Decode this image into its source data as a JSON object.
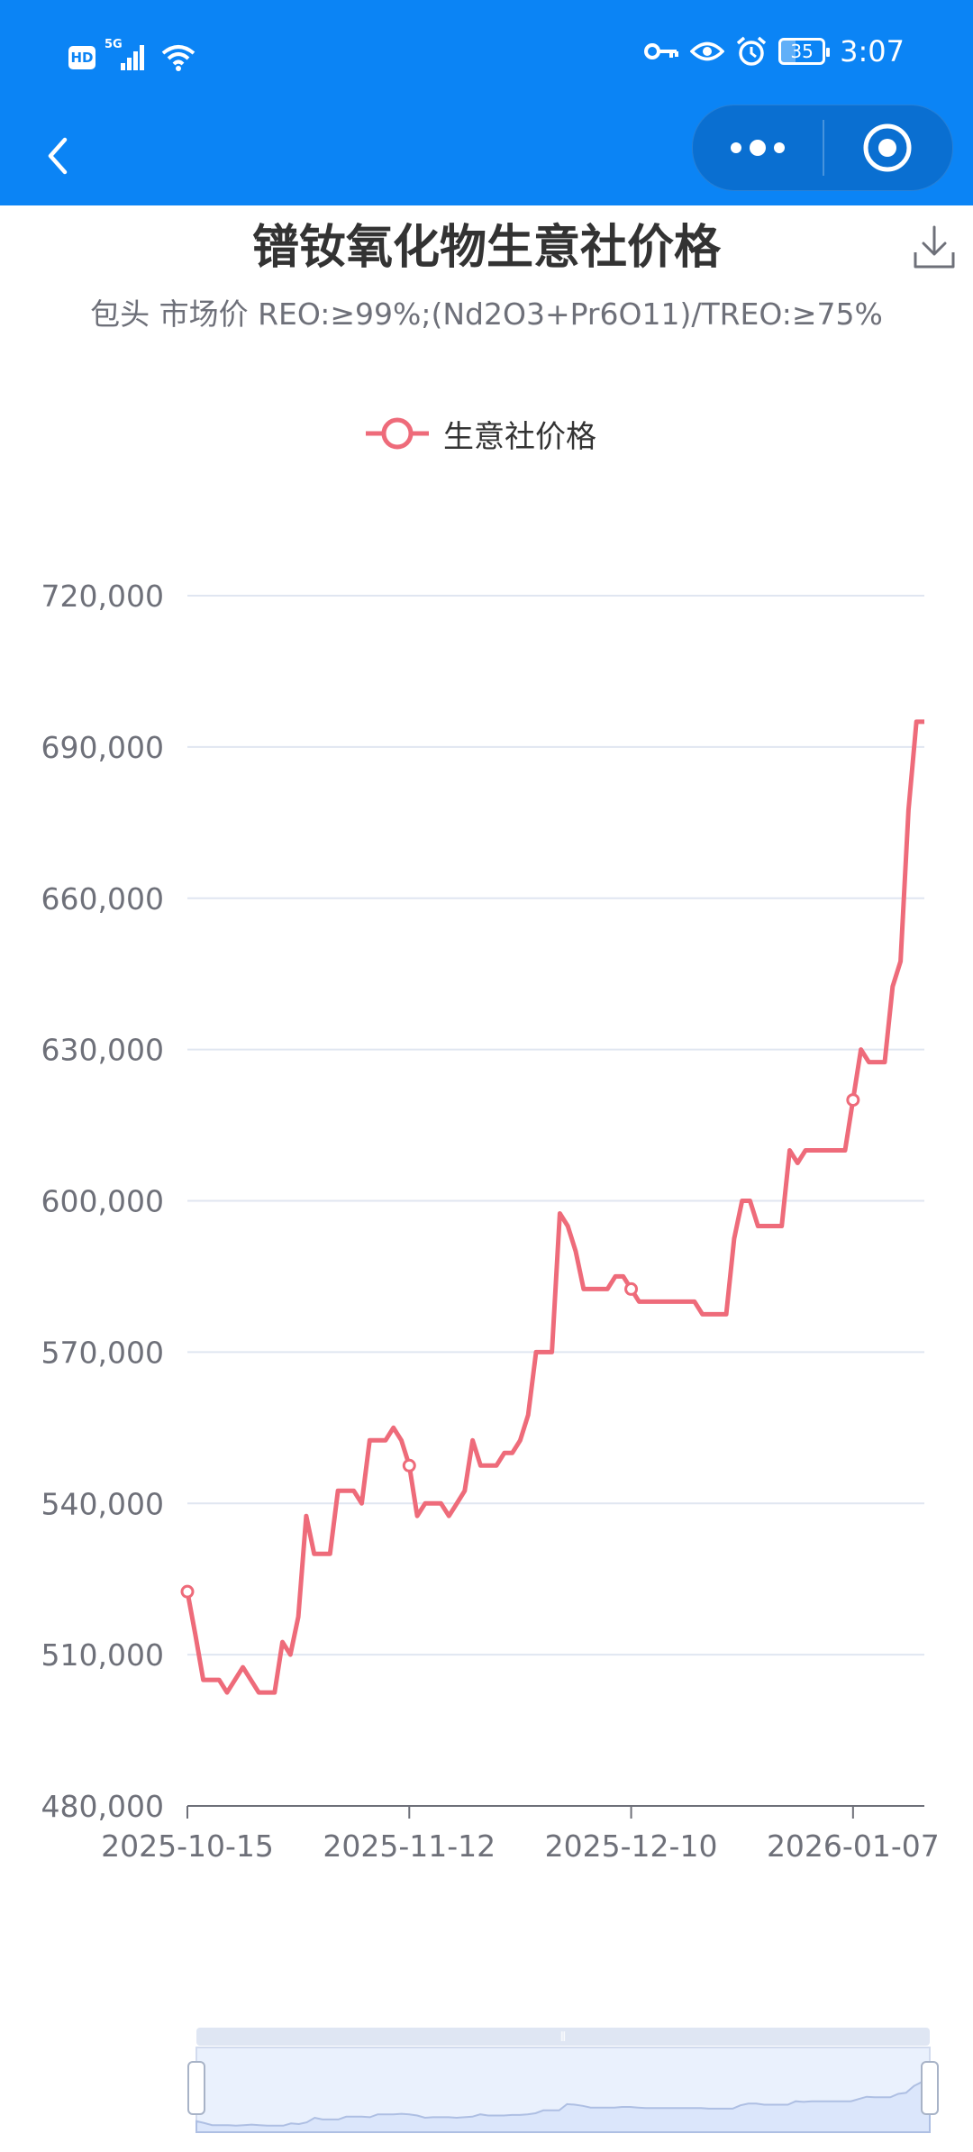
{
  "status_bar": {
    "network_badge": "HD",
    "signal_label": "5G",
    "battery_level": "35",
    "time": "3:07"
  },
  "header": {
    "back_icon": "chevron-left-icon",
    "more_icon": "more-dots-icon",
    "close_icon": "target-close-icon"
  },
  "chart_title": "镨钕氧化物生意社价格",
  "chart_subtitle": "包头 市场价 REO:≥99%;(Nd2O3+Pr6O11)/TREO:≥75%",
  "download_icon": "download-icon",
  "colors": {
    "header_bg": "#0b84f5",
    "series": "#ee6b7a",
    "grid": "#e0e6f1",
    "axis_text": "#6e7079",
    "datazoom_fill": "#dbe6fb"
  },
  "chart_data": {
    "type": "line",
    "title": "镨钕氧化物生意社价格",
    "subtitle": "包头 市场价 REO:≥99%;(Nd2O3+Pr6O11)/TREO:≥75%",
    "legend": [
      "生意社价格"
    ],
    "legend_position": "top-center",
    "grid": true,
    "ylim": [
      480000,
      720000
    ],
    "y_ticks": [
      "720,000",
      "690,000",
      "660,000",
      "630,000",
      "600,000",
      "570,000",
      "540,000",
      "510,000",
      "480,000"
    ],
    "y_tick_values": [
      720000,
      690000,
      660000,
      630000,
      600000,
      570000,
      540000,
      510000,
      480000
    ],
    "x_ticks": [
      "2025-10-15",
      "2025-11-12",
      "2025-12-10",
      "2026-01-07"
    ],
    "x_range": [
      "2025-10-15",
      "2026-01-16"
    ],
    "series": [
      {
        "name": "生意社价格",
        "x": [
          "2025-10-15",
          "2025-10-16",
          "2025-10-17",
          "2025-10-18",
          "2025-10-19",
          "2025-10-20",
          "2025-10-21",
          "2025-10-22",
          "2025-10-23",
          "2025-10-24",
          "2025-10-25",
          "2025-10-26",
          "2025-10-27",
          "2025-10-28",
          "2025-10-29",
          "2025-10-30",
          "2025-10-31",
          "2025-11-01",
          "2025-11-02",
          "2025-11-03",
          "2025-11-04",
          "2025-11-05",
          "2025-11-06",
          "2025-11-07",
          "2025-11-08",
          "2025-11-09",
          "2025-11-10",
          "2025-11-11",
          "2025-11-12",
          "2025-11-13",
          "2025-11-14",
          "2025-11-15",
          "2025-11-16",
          "2025-11-17",
          "2025-11-18",
          "2025-11-19",
          "2025-11-20",
          "2025-11-21",
          "2025-11-22",
          "2025-11-23",
          "2025-11-24",
          "2025-11-25",
          "2025-11-26",
          "2025-11-27",
          "2025-11-28",
          "2025-11-29",
          "2025-11-30",
          "2025-12-01",
          "2025-12-02",
          "2025-12-03",
          "2025-12-04",
          "2025-12-05",
          "2025-12-06",
          "2025-12-07",
          "2025-12-08",
          "2025-12-09",
          "2025-12-10",
          "2025-12-11",
          "2025-12-12",
          "2025-12-13",
          "2025-12-14",
          "2025-12-15",
          "2025-12-16",
          "2025-12-17",
          "2025-12-18",
          "2025-12-19",
          "2025-12-20",
          "2025-12-21",
          "2025-12-22",
          "2025-12-23",
          "2025-12-24",
          "2025-12-25",
          "2025-12-26",
          "2025-12-27",
          "2025-12-28",
          "2025-12-29",
          "2025-12-30",
          "2025-12-31",
          "2026-01-01",
          "2026-01-02",
          "2026-01-03",
          "2026-01-04",
          "2026-01-05",
          "2026-01-06",
          "2026-01-07",
          "2026-01-08",
          "2026-01-09",
          "2026-01-10",
          "2026-01-11",
          "2026-01-12",
          "2026-01-13",
          "2026-01-14",
          "2026-01-15",
          "2026-01-16"
        ],
        "y": [
          522500,
          514000,
          505000,
          505000,
          505000,
          502500,
          505000,
          507500,
          505000,
          502500,
          502500,
          502500,
          512500,
          510000,
          517500,
          537500,
          530000,
          530000,
          530000,
          542500,
          542500,
          542500,
          540000,
          552500,
          552500,
          552500,
          555000,
          552500,
          547500,
          537500,
          540000,
          540000,
          540000,
          537500,
          540000,
          542500,
          552500,
          547500,
          547500,
          547500,
          550000,
          550000,
          552500,
          557500,
          570000,
          570000,
          570000,
          597500,
          595000,
          590000,
          582500,
          582500,
          582500,
          582500,
          585000,
          585000,
          582500,
          580000,
          580000,
          580000,
          580000,
          580000,
          580000,
          580000,
          580000,
          577500,
          577500,
          577500,
          577500,
          592500,
          600000,
          600000,
          595000,
          595000,
          595000,
          595000,
          610000,
          607500,
          610000,
          610000,
          610000,
          610000,
          610000,
          610000,
          620000,
          630000,
          627500,
          627500,
          627500,
          642500,
          647500,
          677500,
          695000,
          695000
        ],
        "markers": [
          "2025-10-15",
          "2025-11-12",
          "2025-12-10",
          "2026-01-07"
        ]
      }
    ]
  }
}
